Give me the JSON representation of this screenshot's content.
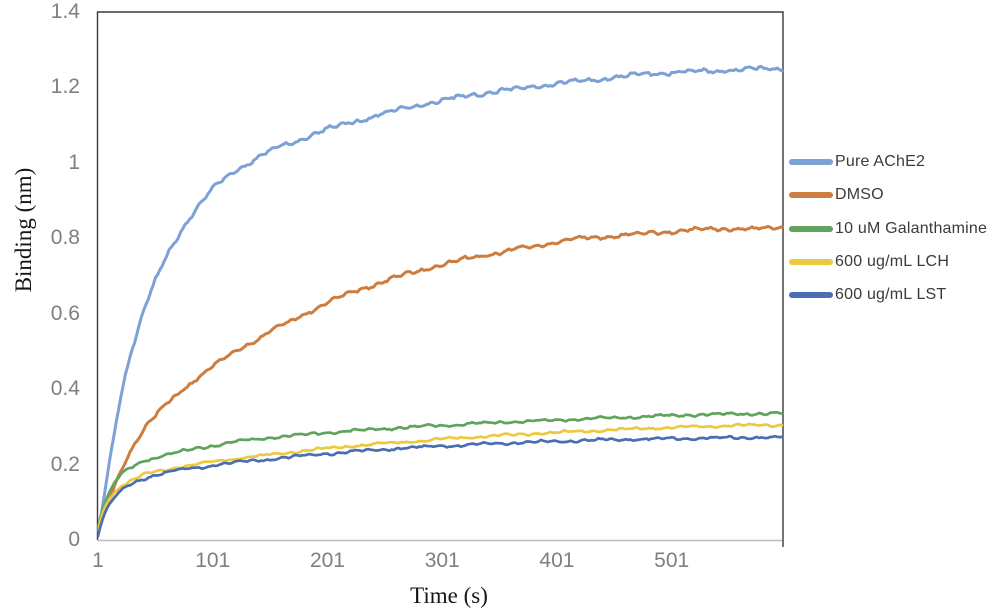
{
  "chart_data": {
    "type": "line",
    "title": "",
    "xlabel": "Time (s)",
    "ylabel": "Binding (nm)",
    "xlim": [
      1,
      598
    ],
    "ylim": [
      0,
      1.4
    ],
    "grid": false,
    "legend_position": "right",
    "x_ticks": {
      "values": [
        1,
        101,
        201,
        301,
        401,
        501
      ],
      "labels": [
        "1",
        "101",
        "201",
        "301",
        "401",
        "501"
      ]
    },
    "y_ticks": {
      "values": [
        0,
        0.2,
        0.4,
        0.6,
        0.8,
        1,
        1.2,
        1.4
      ],
      "labels": [
        "0",
        "0.2",
        "0.4",
        "0.6",
        "0.8",
        "1",
        "1.2",
        "1.4"
      ]
    },
    "axis_colors": {
      "frame": "#3a3a3a",
      "baseline": "#bfbfbf",
      "tick_text": "#7f7f7f",
      "axis_title": "#161616",
      "legend_text": "#3b3b3b"
    },
    "series": [
      {
        "name": "Pure AChE2",
        "color": "#7ca1d6",
        "points": [
          [
            1,
            0.02
          ],
          [
            3,
            0.05
          ],
          [
            6,
            0.11
          ],
          [
            10,
            0.19
          ],
          [
            15,
            0.28
          ],
          [
            20,
            0.37
          ],
          [
            25,
            0.44
          ],
          [
            30,
            0.5
          ],
          [
            40,
            0.6
          ],
          [
            50,
            0.68
          ],
          [
            60,
            0.75
          ],
          [
            75,
            0.83
          ],
          [
            90,
            0.89
          ],
          [
            101,
            0.93
          ],
          [
            120,
            0.98
          ],
          [
            150,
            1.03
          ],
          [
            175,
            1.06
          ],
          [
            201,
            1.09
          ],
          [
            225,
            1.11
          ],
          [
            250,
            1.13
          ],
          [
            275,
            1.15
          ],
          [
            301,
            1.165
          ],
          [
            325,
            1.18
          ],
          [
            350,
            1.19
          ],
          [
            375,
            1.2
          ],
          [
            401,
            1.21
          ],
          [
            425,
            1.218
          ],
          [
            450,
            1.226
          ],
          [
            475,
            1.234
          ],
          [
            501,
            1.24
          ],
          [
            525,
            1.242
          ],
          [
            550,
            1.246
          ],
          [
            575,
            1.248
          ],
          [
            598,
            1.25
          ]
        ]
      },
      {
        "name": "DMSO",
        "color": "#cd7d3f",
        "points": [
          [
            1,
            0.02
          ],
          [
            3,
            0.04
          ],
          [
            6,
            0.07
          ],
          [
            10,
            0.1
          ],
          [
            15,
            0.14
          ],
          [
            20,
            0.18
          ],
          [
            25,
            0.21
          ],
          [
            30,
            0.24
          ],
          [
            40,
            0.29
          ],
          [
            50,
            0.325
          ],
          [
            60,
            0.36
          ],
          [
            75,
            0.4
          ],
          [
            90,
            0.435
          ],
          [
            101,
            0.46
          ],
          [
            120,
            0.5
          ],
          [
            150,
            0.55
          ],
          [
            175,
            0.59
          ],
          [
            201,
            0.63
          ],
          [
            225,
            0.66
          ],
          [
            250,
            0.685
          ],
          [
            275,
            0.71
          ],
          [
            301,
            0.73
          ],
          [
            325,
            0.748
          ],
          [
            350,
            0.762
          ],
          [
            375,
            0.776
          ],
          [
            401,
            0.79
          ],
          [
            425,
            0.8
          ],
          [
            450,
            0.806
          ],
          [
            475,
            0.812
          ],
          [
            501,
            0.818
          ],
          [
            525,
            0.822
          ],
          [
            550,
            0.827
          ],
          [
            575,
            0.824
          ],
          [
            598,
            0.83
          ]
        ]
      },
      {
        "name": "10 uM Galanthamine",
        "color": "#5fa45c",
        "points": [
          [
            1,
            0.03
          ],
          [
            3,
            0.06
          ],
          [
            6,
            0.09
          ],
          [
            10,
            0.12
          ],
          [
            15,
            0.15
          ],
          [
            20,
            0.17
          ],
          [
            25,
            0.182
          ],
          [
            30,
            0.192
          ],
          [
            40,
            0.21
          ],
          [
            50,
            0.218
          ],
          [
            60,
            0.225
          ],
          [
            75,
            0.235
          ],
          [
            90,
            0.245
          ],
          [
            101,
            0.25
          ],
          [
            120,
            0.26
          ],
          [
            150,
            0.272
          ],
          [
            175,
            0.278
          ],
          [
            201,
            0.285
          ],
          [
            225,
            0.29
          ],
          [
            250,
            0.295
          ],
          [
            275,
            0.3
          ],
          [
            301,
            0.304
          ],
          [
            325,
            0.308
          ],
          [
            350,
            0.312
          ],
          [
            375,
            0.315
          ],
          [
            401,
            0.318
          ],
          [
            425,
            0.321
          ],
          [
            450,
            0.324
          ],
          [
            475,
            0.327
          ],
          [
            501,
            0.33
          ],
          [
            525,
            0.332
          ],
          [
            550,
            0.334
          ],
          [
            575,
            0.335
          ],
          [
            598,
            0.336
          ]
        ]
      },
      {
        "name": "600 ug/mL LCH",
        "color": "#edc940",
        "points": [
          [
            1,
            0.025
          ],
          [
            3,
            0.05
          ],
          [
            6,
            0.08
          ],
          [
            10,
            0.105
          ],
          [
            15,
            0.125
          ],
          [
            20,
            0.14
          ],
          [
            25,
            0.15
          ],
          [
            30,
            0.158
          ],
          [
            40,
            0.172
          ],
          [
            50,
            0.18
          ],
          [
            60,
            0.187
          ],
          [
            75,
            0.195
          ],
          [
            90,
            0.202
          ],
          [
            101,
            0.208
          ],
          [
            120,
            0.215
          ],
          [
            150,
            0.226
          ],
          [
            175,
            0.235
          ],
          [
            201,
            0.243
          ],
          [
            225,
            0.25
          ],
          [
            250,
            0.256
          ],
          [
            275,
            0.262
          ],
          [
            301,
            0.268
          ],
          [
            325,
            0.273
          ],
          [
            350,
            0.277
          ],
          [
            375,
            0.281
          ],
          [
            401,
            0.285
          ],
          [
            425,
            0.289
          ],
          [
            450,
            0.292
          ],
          [
            475,
            0.296
          ],
          [
            501,
            0.298
          ],
          [
            525,
            0.301
          ],
          [
            550,
            0.303
          ],
          [
            575,
            0.304
          ],
          [
            598,
            0.305
          ]
        ]
      },
      {
        "name": "600 ug/mL LST",
        "color": "#4a6eb2",
        "points": [
          [
            1,
            0.01
          ],
          [
            3,
            0.035
          ],
          [
            6,
            0.065
          ],
          [
            10,
            0.09
          ],
          [
            15,
            0.112
          ],
          [
            20,
            0.127
          ],
          [
            25,
            0.139
          ],
          [
            30,
            0.148
          ],
          [
            40,
            0.162
          ],
          [
            50,
            0.172
          ],
          [
            60,
            0.179
          ],
          [
            75,
            0.187
          ],
          [
            90,
            0.193
          ],
          [
            101,
            0.198
          ],
          [
            120,
            0.205
          ],
          [
            150,
            0.214
          ],
          [
            175,
            0.222
          ],
          [
            201,
            0.229
          ],
          [
            225,
            0.235
          ],
          [
            250,
            0.24
          ],
          [
            275,
            0.245
          ],
          [
            301,
            0.249
          ],
          [
            325,
            0.253
          ],
          [
            350,
            0.256
          ],
          [
            375,
            0.259
          ],
          [
            401,
            0.262
          ],
          [
            425,
            0.264
          ],
          [
            450,
            0.266
          ],
          [
            475,
            0.268
          ],
          [
            501,
            0.269
          ],
          [
            525,
            0.27
          ],
          [
            550,
            0.271
          ],
          [
            575,
            0.272
          ],
          [
            598,
            0.272
          ]
        ]
      }
    ]
  }
}
